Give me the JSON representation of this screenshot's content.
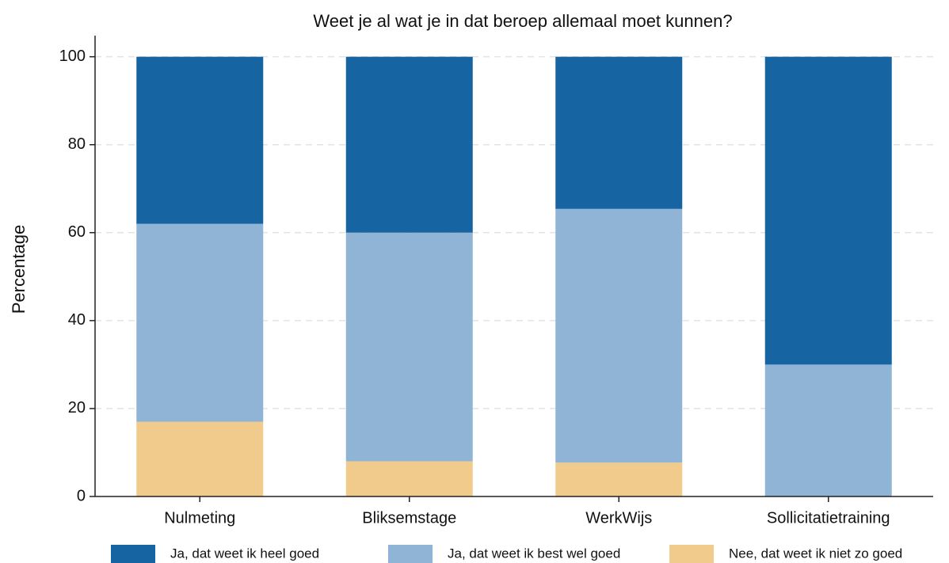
{
  "chart_data": {
    "type": "stacked_bar",
    "title": "Weet je al wat je in dat beroep allemaal moet kunnen?",
    "y_label": "Percentage",
    "categories": [
      "Nulmeting",
      "Bliksemstage",
      "WerkWijs",
      "Sollicitatietraining"
    ],
    "series": [
      {
        "name": "Ja, dat weet ik heel goed",
        "color": "#1764a3",
        "values": [
          38,
          40,
          34.6,
          70
        ]
      },
      {
        "name": "Ja, dat weet ik best wel goed",
        "color": "#8fb4d6",
        "values": [
          45,
          52,
          57.7,
          30
        ]
      },
      {
        "name": "Nee, dat weet ik niet zo goed",
        "color": "#f1cb8c",
        "values": [
          17,
          8,
          7.7,
          0
        ]
      }
    ],
    "ylim": [
      0,
      104.8
    ],
    "yticks": [
      0,
      20,
      40,
      60,
      80,
      100
    ],
    "grid": true
  }
}
